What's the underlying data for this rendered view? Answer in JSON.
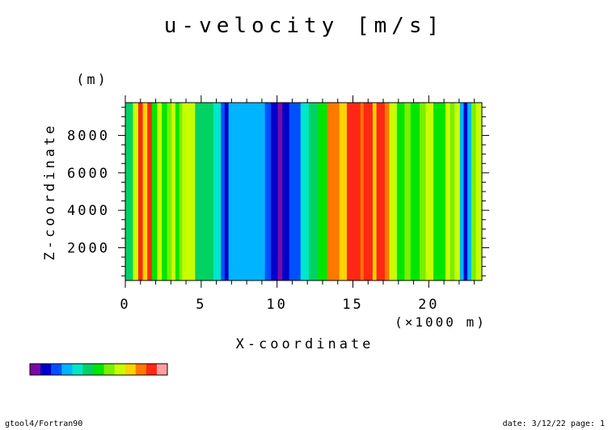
{
  "chart_data": {
    "type": "heatmap",
    "title": "u-velocity [m/s]",
    "xlabel": "X-coordinate",
    "xunit": "(×1000 m)",
    "ylabel": "Z-coordinate",
    "yunit": "(m)",
    "xlim": [
      0,
      23.5
    ],
    "ylim": [
      250,
      9750
    ],
    "x_ticks": [
      0,
      5,
      10,
      15,
      20
    ],
    "x_tick_labels": [
      "0",
      "5",
      "10",
      "15",
      "20"
    ],
    "y_ticks": [
      2000,
      4000,
      6000,
      8000
    ],
    "y_tick_labels": [
      "2000",
      "4000",
      "6000",
      "8000"
    ],
    "grid": false,
    "palette": [
      "#7a0aa8",
      "#0000c8",
      "#0050ff",
      "#00b4ff",
      "#00e6c8",
      "#00d264",
      "#00e600",
      "#78f000",
      "#c8ff00",
      "#ffd200",
      "#ff7800",
      "#ff2814",
      "#ffa0a0"
    ],
    "columns": [
      {
        "x0": 0.0,
        "x1": 0.5,
        "level": 5
      },
      {
        "x0": 0.5,
        "x1": 0.85,
        "level": 8
      },
      {
        "x0": 0.85,
        "x1": 1.15,
        "level": 11
      },
      {
        "x0": 1.15,
        "x1": 1.45,
        "level": 9
      },
      {
        "x0": 1.45,
        "x1": 1.75,
        "level": 11
      },
      {
        "x0": 1.75,
        "x1": 2.1,
        "level": 6
      },
      {
        "x0": 2.1,
        "x1": 2.4,
        "level": 8
      },
      {
        "x0": 2.4,
        "x1": 2.75,
        "level": 6
      },
      {
        "x0": 2.75,
        "x1": 3.05,
        "level": 7
      },
      {
        "x0": 3.05,
        "x1": 3.3,
        "level": 8
      },
      {
        "x0": 3.3,
        "x1": 3.55,
        "level": 6
      },
      {
        "x0": 3.55,
        "x1": 3.75,
        "level": 7
      },
      {
        "x0": 3.75,
        "x1": 4.6,
        "level": 8
      },
      {
        "x0": 4.6,
        "x1": 5.8,
        "level": 5
      },
      {
        "x0": 5.8,
        "x1": 6.3,
        "level": 4
      },
      {
        "x0": 6.3,
        "x1": 6.55,
        "level": 2
      },
      {
        "x0": 6.55,
        "x1": 6.8,
        "level": 1
      },
      {
        "x0": 6.8,
        "x1": 7.1,
        "level": 3
      },
      {
        "x0": 7.1,
        "x1": 9.2,
        "level": 3
      },
      {
        "x0": 9.2,
        "x1": 9.6,
        "level": 2
      },
      {
        "x0": 9.6,
        "x1": 10.05,
        "level": 1
      },
      {
        "x0": 10.05,
        "x1": 10.35,
        "level": 0
      },
      {
        "x0": 10.35,
        "x1": 10.8,
        "level": 1
      },
      {
        "x0": 10.8,
        "x1": 11.55,
        "level": 2
      },
      {
        "x0": 11.55,
        "x1": 12.1,
        "level": 4
      },
      {
        "x0": 12.1,
        "x1": 12.7,
        "level": 5
      },
      {
        "x0": 12.7,
        "x1": 13.3,
        "level": 6
      },
      {
        "x0": 13.3,
        "x1": 14.1,
        "level": 10
      },
      {
        "x0": 14.1,
        "x1": 14.6,
        "level": 9
      },
      {
        "x0": 14.6,
        "x1": 15.5,
        "level": 11
      },
      {
        "x0": 15.5,
        "x1": 15.7,
        "level": 10
      },
      {
        "x0": 15.7,
        "x1": 16.3,
        "level": 11
      },
      {
        "x0": 16.3,
        "x1": 16.55,
        "level": 9
      },
      {
        "x0": 16.55,
        "x1": 17.1,
        "level": 11
      },
      {
        "x0": 17.1,
        "x1": 17.4,
        "level": 10
      },
      {
        "x0": 17.4,
        "x1": 17.9,
        "level": 8
      },
      {
        "x0": 17.9,
        "x1": 18.4,
        "level": 6
      },
      {
        "x0": 18.4,
        "x1": 18.8,
        "level": 7
      },
      {
        "x0": 18.8,
        "x1": 19.4,
        "level": 6
      },
      {
        "x0": 19.4,
        "x1": 19.8,
        "level": 7
      },
      {
        "x0": 19.8,
        "x1": 20.3,
        "level": 8
      },
      {
        "x0": 20.3,
        "x1": 21.1,
        "level": 6
      },
      {
        "x0": 21.1,
        "x1": 21.4,
        "level": 8
      },
      {
        "x0": 21.4,
        "x1": 21.7,
        "level": 7
      },
      {
        "x0": 21.7,
        "x1": 22.05,
        "level": 8
      },
      {
        "x0": 22.05,
        "x1": 22.3,
        "level": 3
      },
      {
        "x0": 22.3,
        "x1": 22.55,
        "level": 1
      },
      {
        "x0": 22.55,
        "x1": 22.8,
        "level": 3
      },
      {
        "x0": 22.8,
        "x1": 23.1,
        "level": 7
      },
      {
        "x0": 23.1,
        "x1": 23.5,
        "level": 8
      }
    ]
  },
  "footer": {
    "left": "gtool4/Fortran90",
    "right": "date: 3/12/22 page: 1"
  }
}
